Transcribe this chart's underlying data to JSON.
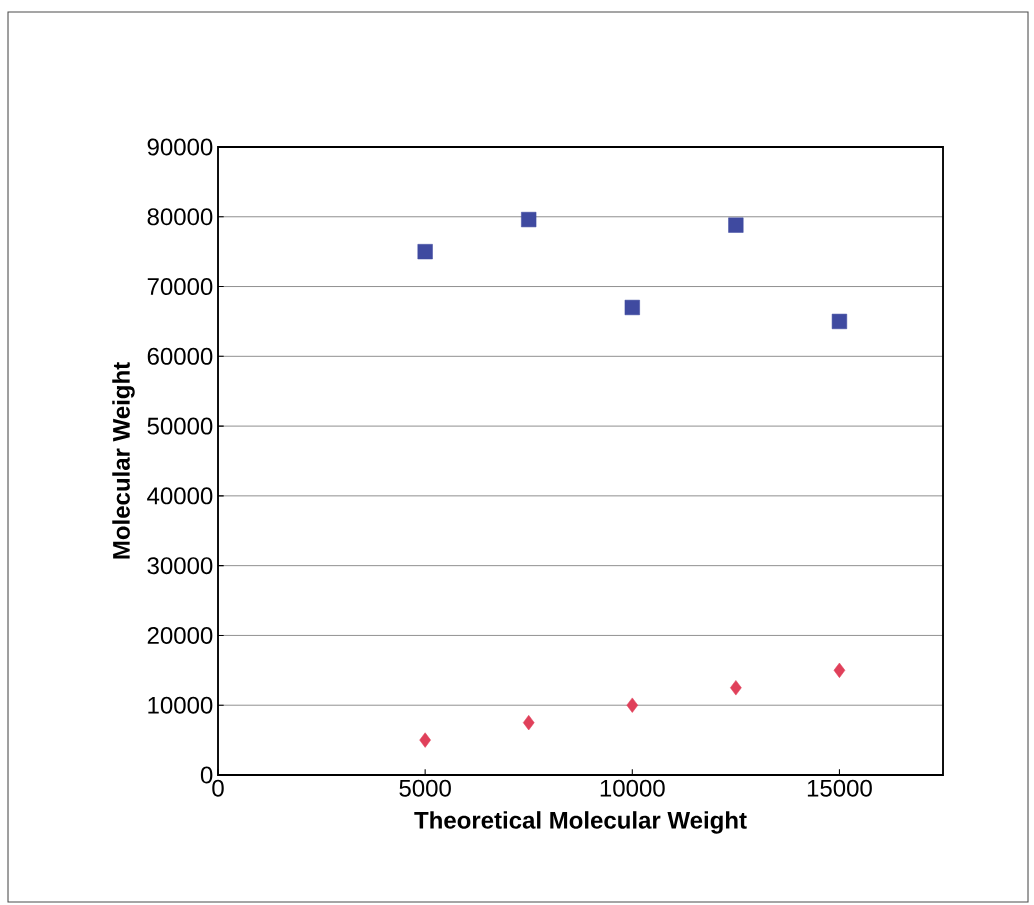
{
  "chart_data": {
    "type": "scatter",
    "xlabel": "Theoretical Molecular Weight",
    "ylabel": "Molecular Weight",
    "x": [
      5000,
      7500,
      10000,
      12500,
      15000
    ],
    "series": [
      {
        "color": "#3f4aa0",
        "marker": "square",
        "values": [
          75000,
          79600,
          67000,
          78800,
          65000
        ]
      },
      {
        "color": "#e0405a",
        "marker": "diamond",
        "values": [
          5000,
          7500,
          10000,
          12500,
          15000
        ]
      }
    ],
    "xlim": [
      0,
      17500
    ],
    "ylim": [
      0,
      90000
    ],
    "xticks": [
      0,
      5000,
      10000,
      15000
    ],
    "yticks": [
      0,
      10000,
      20000,
      30000,
      40000,
      50000,
      60000,
      70000,
      80000,
      90000
    ],
    "grid": "y"
  }
}
